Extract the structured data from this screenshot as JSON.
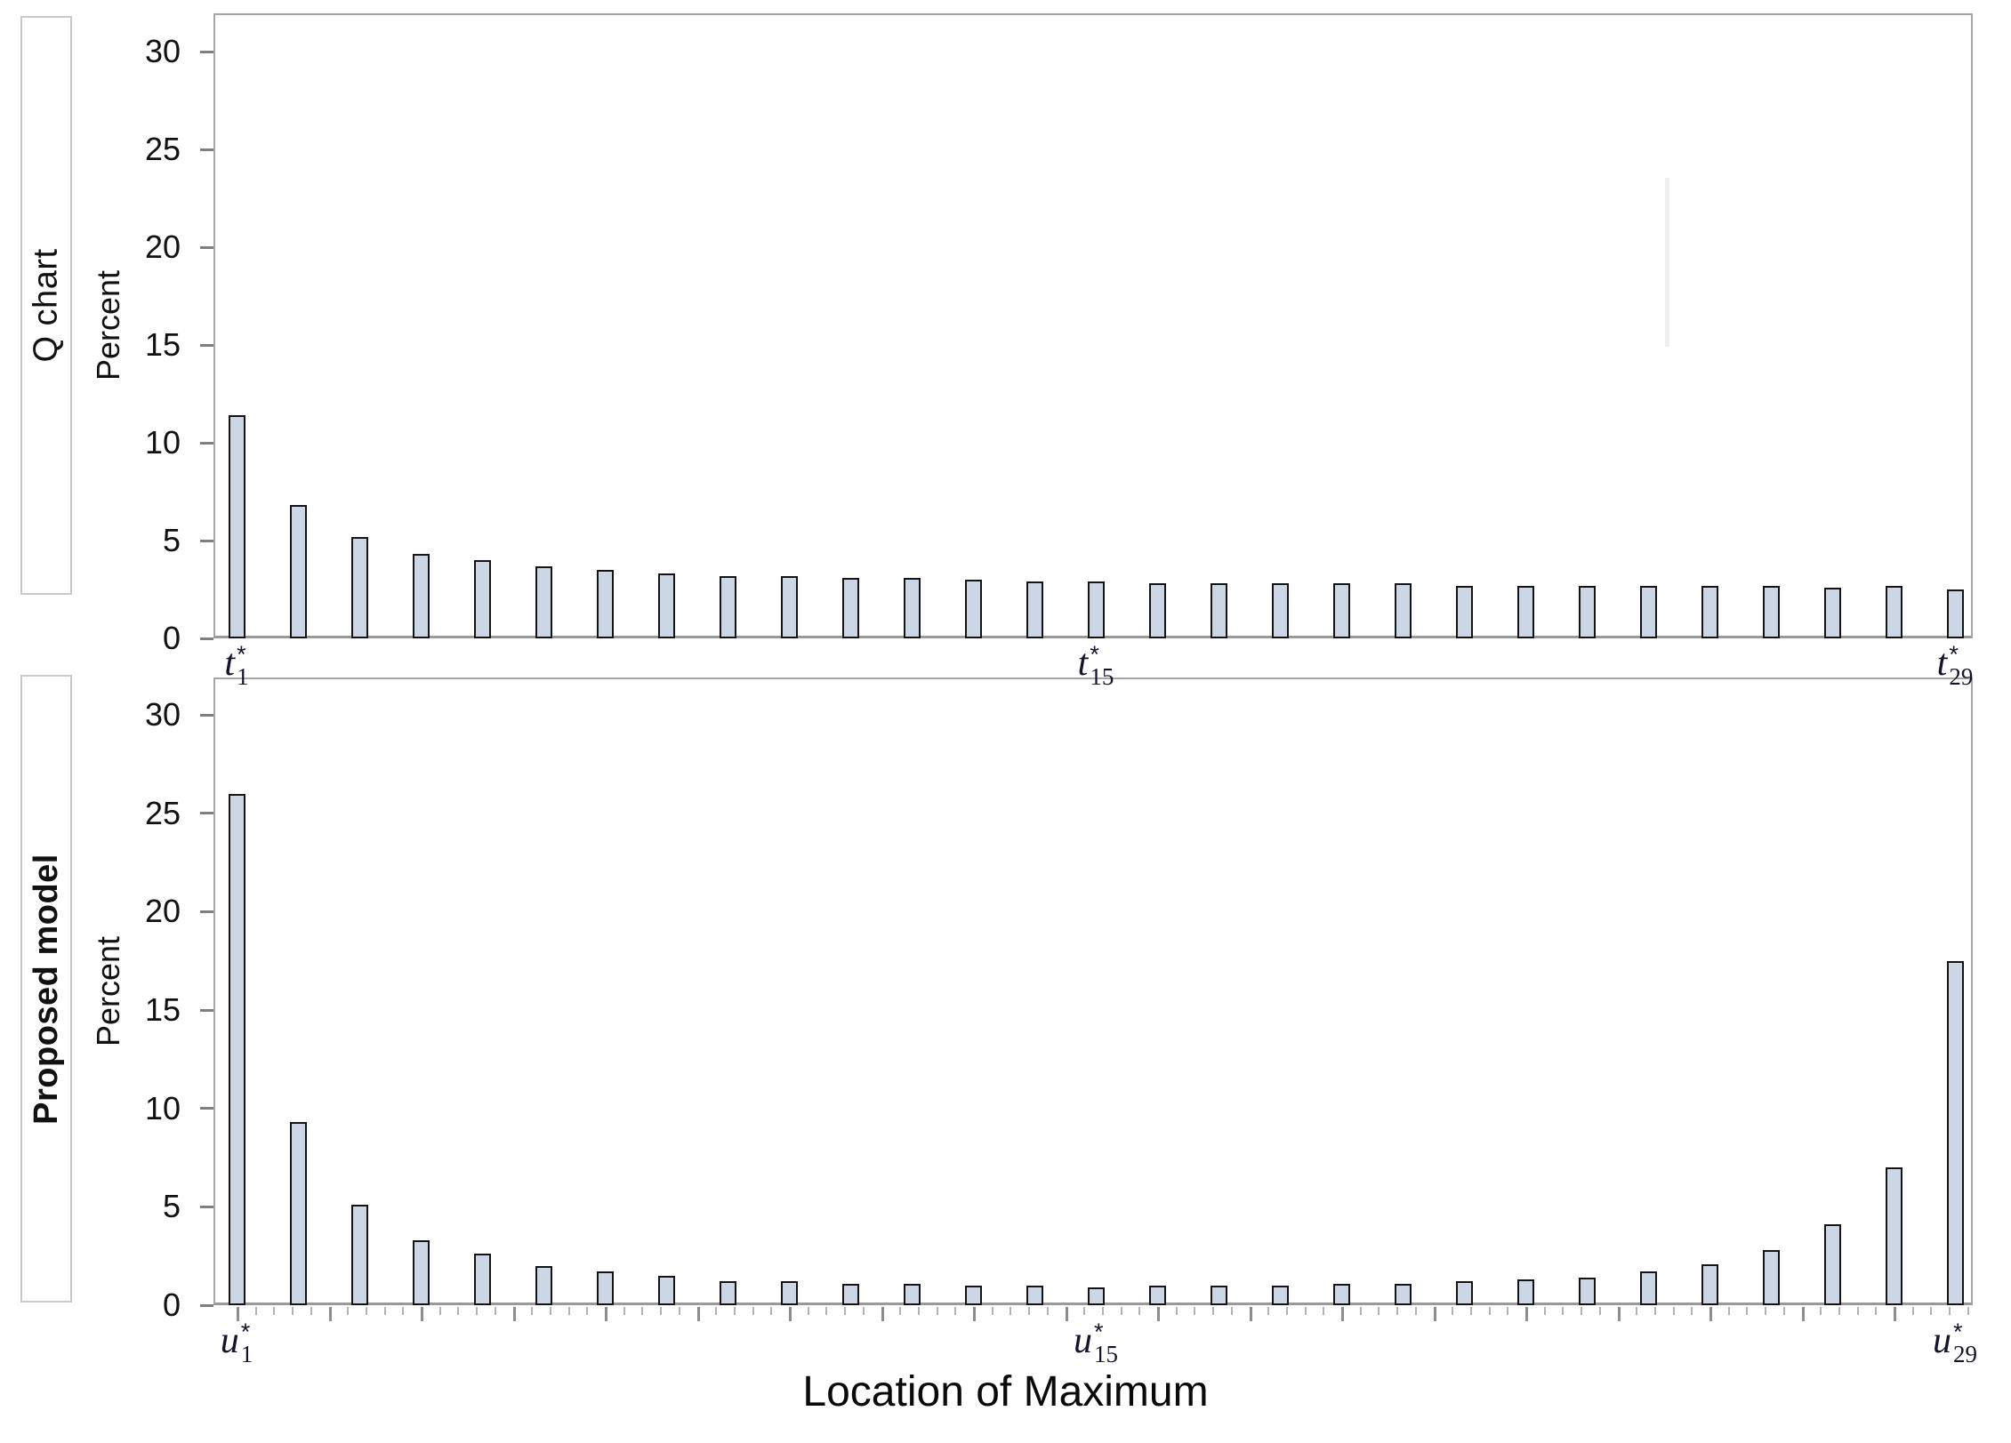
{
  "figure": {
    "x_axis_title": "Location of Maximum",
    "background": "#ffffff",
    "bar_fill": "#ccd6e5",
    "bar_border": "#141414",
    "axis_color": "#a6a6a6",
    "tick_color": "#7f7f7f"
  },
  "chart_data": [
    {
      "type": "bar",
      "panel_label": "Q chart",
      "ylabel": "Percent",
      "ylim": [
        0,
        32
      ],
      "yticks": [
        0,
        5,
        10,
        15,
        20,
        25,
        30
      ],
      "grid": false,
      "n_bars": 29,
      "x_tick_labels": [
        {
          "index": 1,
          "letter": "t",
          "sub": "1",
          "sup": "*"
        },
        {
          "index": 15,
          "letter": "t",
          "sub": "15",
          "sup": "*"
        },
        {
          "index": 29,
          "letter": "t",
          "sub": "29",
          "sup": "*"
        }
      ],
      "values": [
        11.4,
        6.8,
        5.2,
        4.3,
        4.0,
        3.7,
        3.5,
        3.3,
        3.2,
        3.2,
        3.1,
        3.1,
        3.0,
        2.9,
        2.9,
        2.8,
        2.8,
        2.8,
        2.8,
        2.8,
        2.7,
        2.7,
        2.7,
        2.7,
        2.7,
        2.7,
        2.6,
        2.7,
        2.5
      ]
    },
    {
      "type": "bar",
      "panel_label": "Proposed model",
      "ylabel": "Percent",
      "ylim": [
        0,
        32
      ],
      "yticks": [
        0,
        5,
        10,
        15,
        20,
        25,
        30
      ],
      "grid": false,
      "n_bars": 29,
      "x_tick_labels": [
        {
          "index": 1,
          "letter": "u",
          "sub": "1",
          "sup": "*"
        },
        {
          "index": 15,
          "letter": "u",
          "sub": "15",
          "sup": "*"
        },
        {
          "index": 29,
          "letter": "u",
          "sub": "29",
          "sup": "*"
        }
      ],
      "values": [
        26.0,
        9.3,
        5.1,
        3.3,
        2.6,
        2.0,
        1.7,
        1.5,
        1.2,
        1.2,
        1.1,
        1.1,
        1.0,
        1.0,
        0.9,
        1.0,
        1.0,
        1.0,
        1.1,
        1.1,
        1.2,
        1.3,
        1.4,
        1.7,
        2.1,
        2.8,
        4.1,
        7.0,
        17.5
      ]
    }
  ]
}
